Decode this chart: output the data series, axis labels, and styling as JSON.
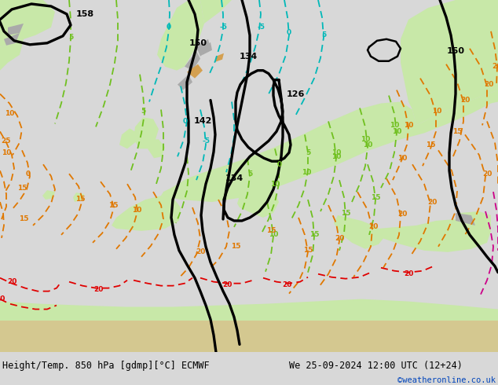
{
  "title_left": "Height/Temp. 850 hPa [gdmp][°C] ECMWF",
  "title_right": "We 25-09-2024 12:00 UTC (12+24)",
  "credit": "©weatheronline.co.uk",
  "bg_color": "#d8d8d8",
  "land_color": "#c8e8a8",
  "sea_color": "#e0e0e0",
  "mountain_color": "#aaaaaa",
  "orange_land_color": "#d4a050",
  "fig_width": 6.34,
  "fig_height": 4.9,
  "dpi": 100,
  "bottom_bar_color": "#e0e0e0",
  "title_fontsize": 8.5,
  "credit_color": "#0044bb",
  "credit_fontsize": 7.5
}
